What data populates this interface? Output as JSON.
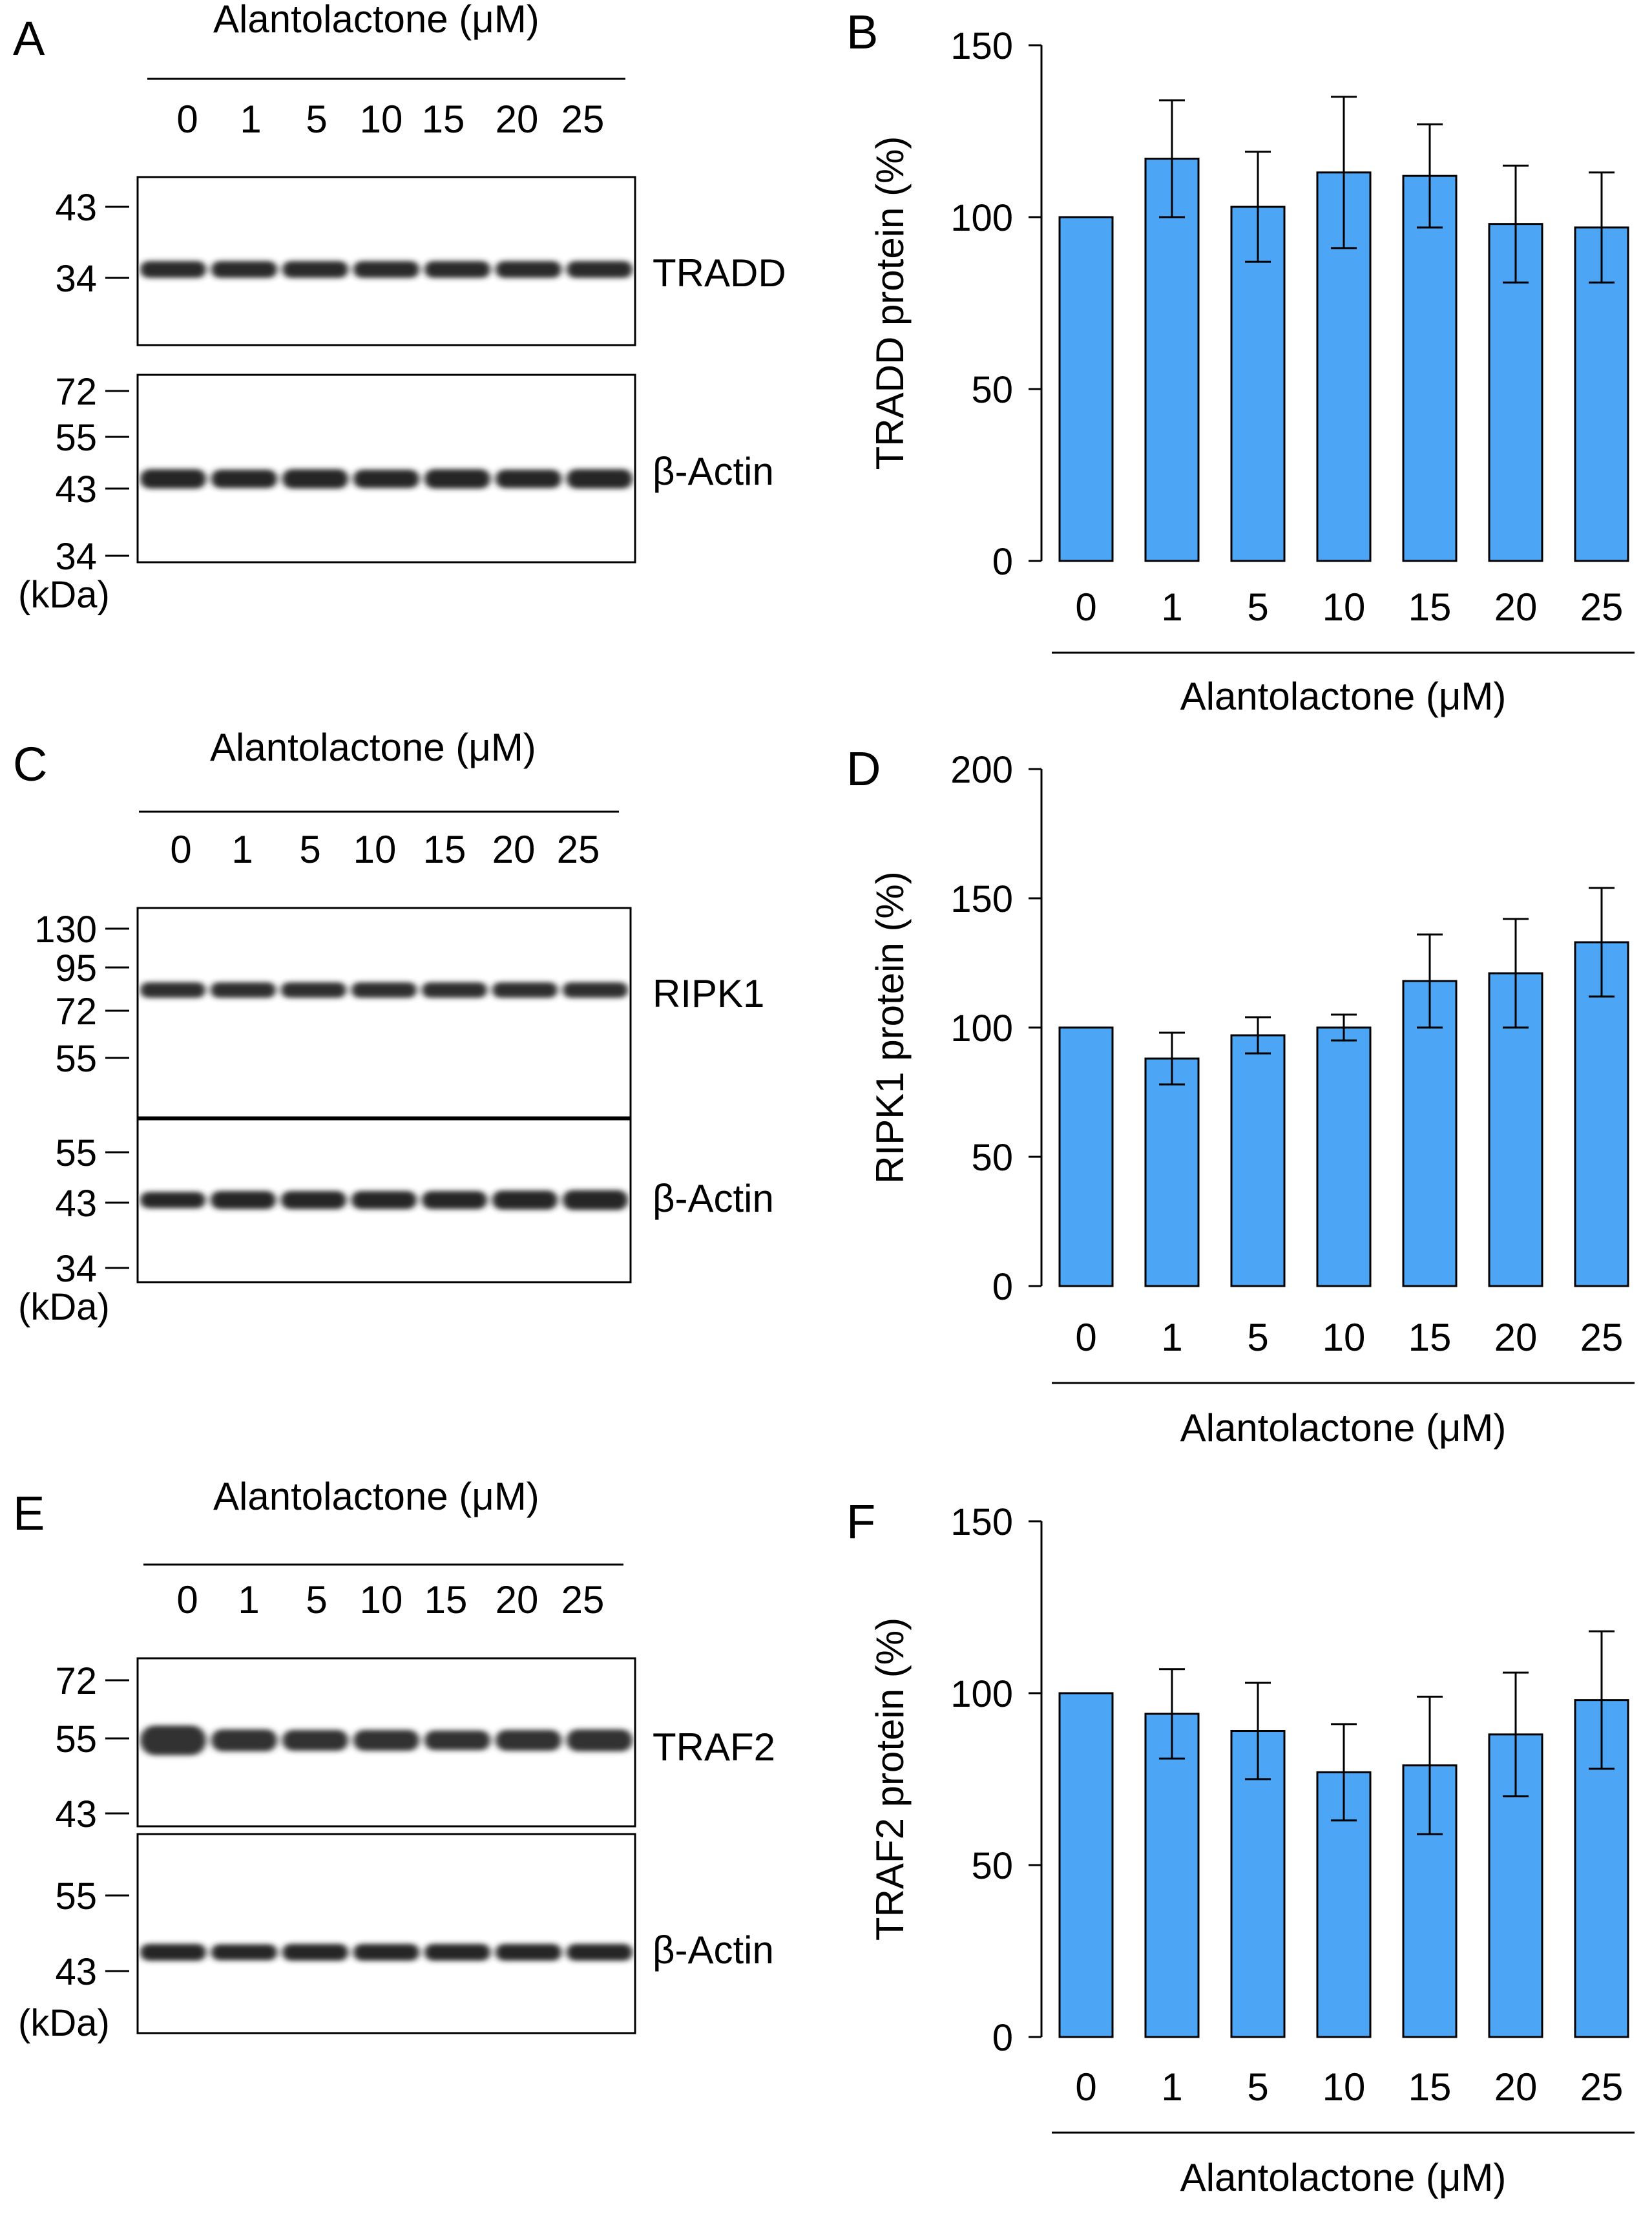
{
  "blots": [
    {
      "panel_label": "A",
      "treatment_label": "Alantolactone (μM)",
      "lanes": [
        "0",
        "1",
        "5",
        "10",
        "15",
        "20",
        "25"
      ],
      "kda_unit": "(kDa)",
      "blocks": [
        {
          "protein": "TRADD",
          "markers": [
            "43",
            "34"
          ],
          "band_shade": "#2b2b2b"
        },
        {
          "protein": "β-Actin",
          "markers": [
            "72",
            "55",
            "43",
            "34"
          ],
          "band_shade": "#262626"
        }
      ]
    },
    {
      "panel_label": "C",
      "treatment_label": "Alantolactone (μM)",
      "lanes": [
        "0",
        "1",
        "5",
        "10",
        "15",
        "20",
        "25"
      ],
      "kda_unit": "(kDa)",
      "blocks": [
        {
          "protein": "RIPK1",
          "markers": [
            "130",
            "95",
            "72",
            "55"
          ],
          "band_shade": "#2e2e2e"
        },
        {
          "protein": "β-Actin",
          "markers": [
            "55",
            "43",
            "34"
          ],
          "band_shade": "#262626"
        }
      ]
    },
    {
      "panel_label": "E",
      "treatment_label": "Alantolactone (μM)",
      "lanes": [
        "0",
        "1",
        "5",
        "10",
        "15",
        "20",
        "25"
      ],
      "kda_unit": "(kDa)",
      "blocks": [
        {
          "protein": "TRAF2",
          "markers": [
            "72",
            "55",
            "43"
          ],
          "band_shade": "#303030"
        },
        {
          "protein": "β-Actin",
          "markers": [
            "55",
            "43"
          ],
          "band_shade": "#262626"
        }
      ]
    }
  ],
  "chart_data": [
    {
      "panel_label": "B",
      "type": "bar",
      "title": "",
      "categories": [
        "0",
        "1",
        "5",
        "10",
        "15",
        "20",
        "25"
      ],
      "values": [
        100,
        117,
        103,
        113,
        112,
        98,
        97
      ],
      "errors": [
        0,
        17,
        16,
        22,
        15,
        17,
        16
      ],
      "xlabel": "Alantolactone (μM)",
      "ylabel": "TRADD protein (%)",
      "ylim": [
        0,
        150
      ],
      "yticks": [
        0,
        50,
        100,
        150
      ],
      "bar_color": "#4da6f5",
      "grid": false
    },
    {
      "panel_label": "D",
      "type": "bar",
      "title": "",
      "categories": [
        "0",
        "1",
        "5",
        "10",
        "15",
        "20",
        "25"
      ],
      "values": [
        100,
        88,
        97,
        100,
        118,
        121,
        133
      ],
      "errors": [
        0,
        10,
        7,
        5,
        18,
        21,
        21
      ],
      "xlabel": "Alantolactone (μM)",
      "ylabel": "RIPK1 protein (%)",
      "ylim": [
        0,
        200
      ],
      "yticks": [
        0,
        50,
        100,
        150,
        200
      ],
      "bar_color": "#4da6f5",
      "grid": false
    },
    {
      "panel_label": "F",
      "type": "bar",
      "title": "",
      "categories": [
        "0",
        "1",
        "5",
        "10",
        "15",
        "20",
        "25"
      ],
      "values": [
        100,
        94,
        89,
        77,
        79,
        88,
        98
      ],
      "errors": [
        0,
        13,
        14,
        14,
        20,
        18,
        20
      ],
      "xlabel": "Alantolactone (μM)",
      "ylabel": "TRAF2 protein (%)",
      "ylim": [
        0,
        150
      ],
      "yticks": [
        0,
        50,
        100,
        150
      ],
      "bar_color": "#4da6f5",
      "grid": false
    }
  ]
}
